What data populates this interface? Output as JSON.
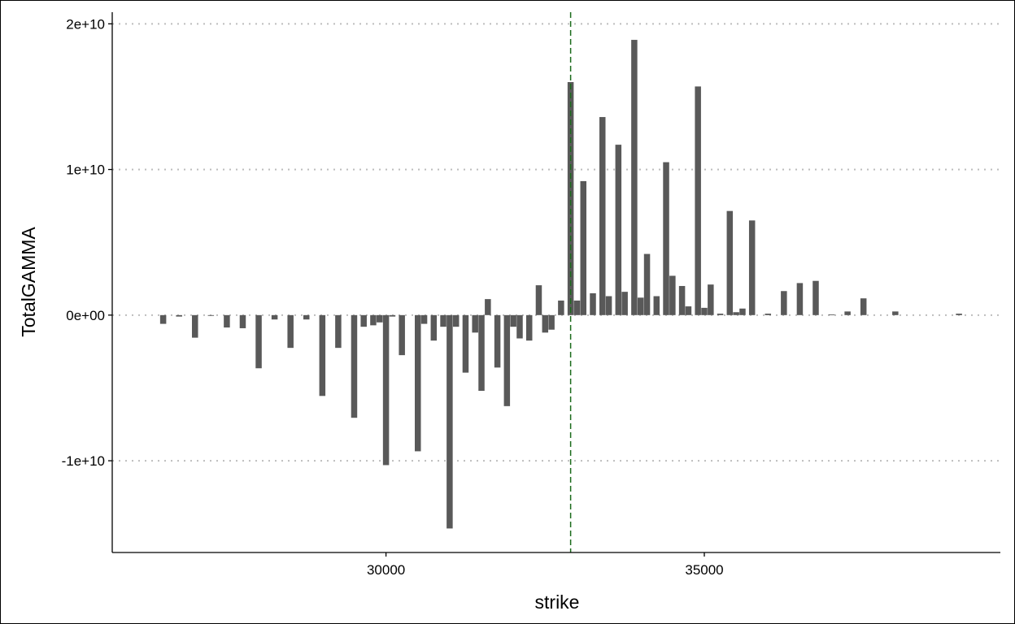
{
  "chart_data": {
    "type": "bar",
    "title": "",
    "xlabel": "strike",
    "ylabel": "TotalGAMMA",
    "xlim": [
      25700,
      39650
    ],
    "ylim": [
      -16300000000,
      20800000000
    ],
    "x_ticks": [
      30000,
      35000
    ],
    "x_tick_labels": [
      "30000",
      "35000"
    ],
    "y_ticks": [
      -10000000000,
      0,
      10000000000,
      20000000000
    ],
    "y_tick_labels": [
      "-1e+10",
      "0e+00",
      "1e+10",
      "2e+10"
    ],
    "grid": "horizontal dotted",
    "bar_color": "#595959",
    "reference_line": {
      "x": 32900,
      "style": "dashed",
      "color": "#1b6b1b"
    },
    "x": [
      26500,
      26750,
      27000,
      27250,
      27500,
      27750,
      28000,
      28250,
      28500,
      28750,
      29000,
      29250,
      29500,
      29650,
      29800,
      29900,
      30000,
      30100,
      30250,
      30500,
      30600,
      30750,
      30900,
      31000,
      31100,
      31250,
      31400,
      31500,
      31600,
      31750,
      31900,
      32000,
      32100,
      32250,
      32400,
      32500,
      32600,
      32750,
      32900,
      33000,
      33100,
      33250,
      33400,
      33500,
      33650,
      33750,
      33900,
      34000,
      34100,
      34250,
      34400,
      34500,
      34650,
      34750,
      34900,
      35000,
      35100,
      35250,
      35400,
      35500,
      35600,
      35750,
      36000,
      36250,
      36500,
      36750,
      37000,
      37250,
      37500,
      38000,
      39000
    ],
    "values": [
      -600000000,
      -100000000,
      -1550000000,
      -50000000,
      -850000000,
      -900000000,
      -3650000000,
      -300000000,
      -2250000000,
      -300000000,
      -5550000000,
      -2250000000,
      -7050000000,
      -800000000,
      -700000000,
      -500000000,
      -10300000000,
      -100000000,
      -2750000000,
      -9350000000,
      -600000000,
      -1750000000,
      -800000000,
      -14650000000,
      -800000000,
      -3950000000,
      -1200000000,
      -5200000000,
      1100000000,
      -3600000000,
      -6250000000,
      -800000000,
      -1600000000,
      -1750000000,
      2050000000,
      -1200000000,
      -1000000000,
      1000000000,
      16000000000,
      1000000000,
      9200000000,
      1500000000,
      13600000000,
      1300000000,
      11700000000,
      1600000000,
      18900000000,
      1200000000,
      4200000000,
      1300000000,
      10500000000,
      2700000000,
      2000000000,
      600000000,
      15700000000,
      500000000,
      2100000000,
      100000000,
      7150000000,
      200000000,
      450000000,
      6500000000,
      100000000,
      1650000000,
      2200000000,
      2350000000,
      50000000,
      250000000,
      1150000000,
      250000000,
      100000000
    ]
  }
}
